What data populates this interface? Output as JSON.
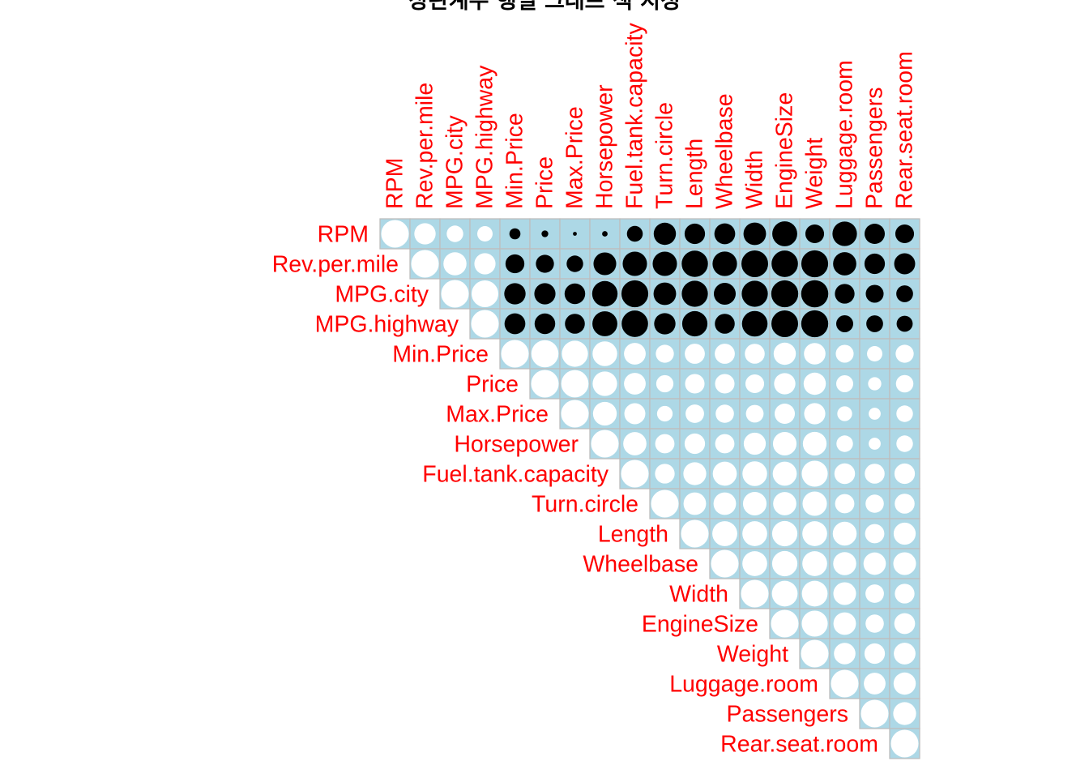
{
  "chart_data": {
    "type": "heatmap",
    "title": "상관계수 행렬 그래프 색 지정",
    "layout": "upper triangle, circles",
    "variables": [
      "RPM",
      "Rev.per.mile",
      "MPG.city",
      "MPG.highway",
      "Min.Price",
      "Price",
      "Max.Price",
      "Horsepower",
      "Fuel.tank.capacity",
      "Turn.circle",
      "Length",
      "Wheelbase",
      "Width",
      "EngineSize",
      "Weight",
      "Luggage.room",
      "Passengers",
      "Rear.seat.room"
    ],
    "matrix": [
      [
        1.0,
        0.6,
        0.36,
        0.31,
        -0.16,
        -0.06,
        -0.02,
        -0.04,
        -0.33,
        -0.65,
        -0.55,
        -0.57,
        -0.67,
        -0.82,
        -0.46,
        -0.79,
        -0.54,
        -0.46
      ],
      [
        null,
        1.0,
        0.7,
        0.59,
        -0.47,
        -0.43,
        -0.36,
        -0.68,
        -0.78,
        -0.78,
        -0.91,
        -0.79,
        -0.94,
        -0.92,
        -0.95,
        -0.71,
        -0.55,
        -0.58
      ],
      [
        null,
        null,
        1.0,
        0.94,
        -0.6,
        -0.59,
        -0.56,
        -0.85,
        -0.95,
        -0.67,
        -0.9,
        -0.63,
        -0.9,
        -0.96,
        -0.97,
        -0.51,
        -0.42,
        -0.37
      ],
      [
        null,
        null,
        null,
        1.0,
        -0.57,
        -0.56,
        -0.52,
        -0.82,
        -0.92,
        -0.6,
        -0.84,
        -0.52,
        -0.86,
        -0.94,
        -0.96,
        -0.38,
        -0.37,
        -0.34
      ],
      [
        null,
        null,
        null,
        null,
        1.0,
        0.97,
        0.9,
        0.8,
        0.62,
        0.43,
        0.53,
        0.53,
        0.52,
        0.65,
        0.61,
        0.42,
        0.31,
        0.43
      ],
      [
        null,
        null,
        null,
        null,
        null,
        1.0,
        0.98,
        0.79,
        0.62,
        0.39,
        0.5,
        0.5,
        0.46,
        0.6,
        0.65,
        0.38,
        0.23,
        0.4
      ],
      [
        null,
        null,
        null,
        null,
        null,
        null,
        1.0,
        0.74,
        0.58,
        0.32,
        0.45,
        0.44,
        0.41,
        0.54,
        0.59,
        0.29,
        0.19,
        0.36
      ],
      [
        null,
        null,
        null,
        null,
        null,
        null,
        null,
        1.0,
        0.71,
        0.49,
        0.55,
        0.49,
        0.64,
        0.73,
        0.74,
        0.36,
        0.19,
        0.36
      ],
      [
        null,
        null,
        null,
        null,
        null,
        null,
        null,
        null,
        1.0,
        0.51,
        0.69,
        0.76,
        0.8,
        0.76,
        0.89,
        0.56,
        0.52,
        0.55
      ],
      [
        null,
        null,
        null,
        null,
        null,
        null,
        null,
        null,
        null,
        1.0,
        0.67,
        0.67,
        0.73,
        0.71,
        0.78,
        0.49,
        0.44,
        0.52
      ],
      [
        null,
        null,
        null,
        null,
        null,
        null,
        null,
        null,
        null,
        null,
        1.0,
        0.82,
        0.81,
        0.84,
        0.81,
        0.75,
        0.49,
        0.64
      ],
      [
        null,
        null,
        null,
        null,
        null,
        null,
        null,
        null,
        null,
        null,
        null,
        1.0,
        0.81,
        0.84,
        0.81,
        0.7,
        0.66,
        0.68
      ],
      [
        null,
        null,
        null,
        null,
        null,
        null,
        null,
        null,
        null,
        null,
        null,
        null,
        1.0,
        0.87,
        0.87,
        0.68,
        0.45,
        0.51
      ],
      [
        null,
        null,
        null,
        null,
        null,
        null,
        null,
        null,
        null,
        null,
        null,
        null,
        null,
        1.0,
        0.89,
        0.67,
        0.44,
        0.57
      ],
      [
        null,
        null,
        null,
        null,
        null,
        null,
        null,
        null,
        null,
        null,
        null,
        null,
        null,
        null,
        1.0,
        0.61,
        0.55,
        0.62
      ],
      [
        null,
        null,
        null,
        null,
        null,
        null,
        null,
        null,
        null,
        null,
        null,
        null,
        null,
        null,
        null,
        1.0,
        0.62,
        0.65
      ],
      [
        null,
        null,
        null,
        null,
        null,
        null,
        null,
        null,
        null,
        null,
        null,
        null,
        null,
        null,
        null,
        null,
        1.0,
        0.69
      ],
      [
        null,
        null,
        null,
        null,
        null,
        null,
        null,
        null,
        null,
        null,
        null,
        null,
        null,
        null,
        null,
        null,
        null,
        1.0
      ]
    ],
    "colors": {
      "background": "#add8e6",
      "grid": "#bebebe",
      "positive": "#ffffff",
      "negative": "#000000",
      "labels": "#ff0000",
      "title": "#000000"
    }
  }
}
